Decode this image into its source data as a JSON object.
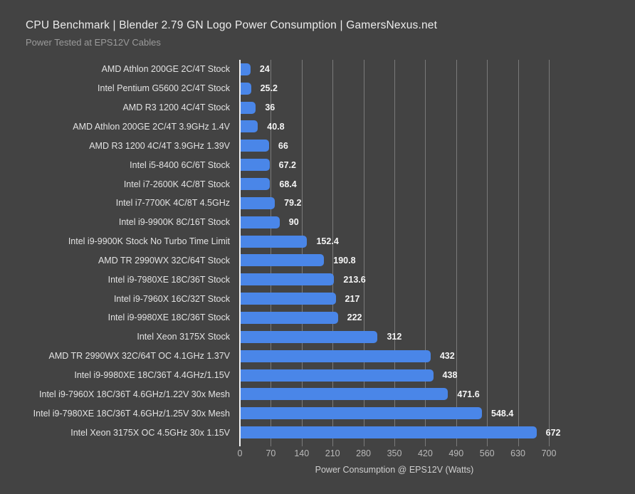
{
  "header": {
    "title": "CPU Benchmark | Blender 2.79 GN Logo Power Consumption | GamersNexus.net",
    "subtitle": "Power Tested at EPS12V Cables"
  },
  "chart_data": {
    "type": "bar",
    "orientation": "horizontal",
    "title": "CPU Benchmark | Blender 2.79 GN Logo Power Consumption | GamersNexus.net",
    "subtitle": "Power Tested at EPS12V Cables",
    "categories": [
      "AMD Athlon 200GE 2C/4T Stock",
      "Intel Pentium G5600 2C/4T Stock",
      "AMD R3 1200 4C/4T Stock",
      "AMD Athlon 200GE 2C/4T 3.9GHz 1.4V",
      "AMD R3 1200 4C/4T 3.9GHz 1.39V",
      "Intel i5-8400 6C/6T Stock",
      "Intel i7-2600K 4C/8T Stock",
      "Intel i7-7700K 4C/8T 4.5GHz",
      "Intel i9-9900K 8C/16T Stock",
      "Intel i9-9900K Stock No Turbo Time Limit",
      "AMD TR 2990WX 32C/64T Stock",
      "Intel i9-7980XE 18C/36T Stock",
      "Intel i9-7960X 16C/32T Stock",
      "Intel i9-9980XE 18C/36T Stock",
      "Intel Xeon 3175X Stock",
      "AMD TR 2990WX 32C/64T OC 4.1GHz 1.37V",
      "Intel i9-9980XE 18C/36T 4.4GHz/1.15V",
      "Intel i9-7960X 18C/36T 4.6GHz/1.22V 30x Mesh",
      "Intel i9-7980XE 18C/36T 4.6GHz/1.25V 30x Mesh",
      "Intel Xeon 3175X OC 4.5GHz 30x 1.15V"
    ],
    "values": [
      24,
      25.2,
      36,
      40.8,
      66,
      67.2,
      68.4,
      79.2,
      90,
      152.4,
      190.8,
      213.6,
      217,
      222,
      312,
      432,
      438,
      471.6,
      548.4,
      672
    ],
    "value_labels": [
      "24",
      "25.2",
      "36",
      "40.8",
      "66",
      "67.2",
      "68.4",
      "79.2",
      "90",
      "152.4",
      "190.8",
      "213.6",
      "217",
      "222",
      "312",
      "432",
      "438",
      "471.6",
      "548.4",
      "672"
    ],
    "xlabel": "Power Consumption @ EPS12V (Watts)",
    "xticks": [
      0,
      70,
      140,
      210,
      280,
      350,
      420,
      490,
      560,
      630,
      700
    ],
    "xlim": [
      0,
      700
    ],
    "grid": true,
    "legend": "none",
    "colors": {
      "bar": "#4a86e8",
      "background": "#434343",
      "gridline": "#7a7a7a",
      "zero_axis": "#f2f2f2",
      "title_text": "#ececec",
      "subtitle_text": "#9b9b9b",
      "category_text": "#e3e3e3",
      "value_text": "#f5f5f5",
      "tick_text": "#b9b9b9"
    }
  }
}
